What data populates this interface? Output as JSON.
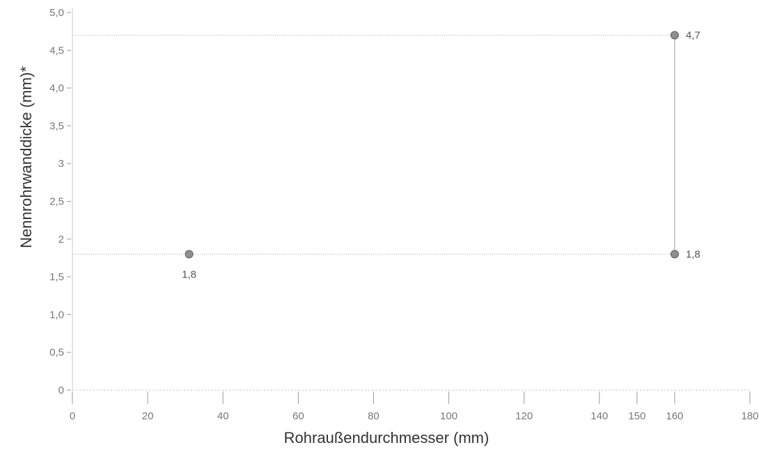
{
  "chart_data": {
    "type": "scatter",
    "title": "",
    "xlabel": "Rohraußendurchmesser (mm)",
    "ylabel": "Nennrohrwanddicke (mm)*",
    "xlim": [
      0,
      180
    ],
    "ylim": [
      0,
      5.0
    ],
    "x_ticks": [
      {
        "value": 0,
        "label": "0"
      },
      {
        "value": 20,
        "label": "20"
      },
      {
        "value": 40,
        "label": "40"
      },
      {
        "value": 60,
        "label": "60"
      },
      {
        "value": 80,
        "label": "80"
      },
      {
        "value": 100,
        "label": "100"
      },
      {
        "value": 120,
        "label": "120"
      },
      {
        "value": 140,
        "label": "140"
      },
      {
        "value": 150,
        "label": "150"
      },
      {
        "value": 160,
        "label": "160"
      },
      {
        "value": 180,
        "label": "180"
      }
    ],
    "y_ticks": [
      {
        "value": 0,
        "label": "0"
      },
      {
        "value": 0.5,
        "label": "0,5"
      },
      {
        "value": 1.0,
        "label": "1,0"
      },
      {
        "value": 1.5,
        "label": "1,5"
      },
      {
        "value": 2.0,
        "label": "2"
      },
      {
        "value": 2.5,
        "label": "2,5"
      },
      {
        "value": 3.0,
        "label": "3"
      },
      {
        "value": 3.5,
        "label": "3,5"
      },
      {
        "value": 4.0,
        "label": "4,0"
      },
      {
        "value": 4.5,
        "label": "4,5"
      },
      {
        "value": 5.0,
        "label": "5,0"
      }
    ],
    "points": [
      {
        "x": 31,
        "y": 1.8,
        "label": "1,8",
        "label_position": "below"
      },
      {
        "x": 160,
        "y": 1.8,
        "label": "1,8",
        "label_position": "right"
      },
      {
        "x": 160,
        "y": 4.7,
        "label": "4,7",
        "label_position": "right"
      }
    ],
    "reference_lines": [
      {
        "orientation": "horizontal",
        "y": 4.7
      },
      {
        "orientation": "horizontal",
        "y": 1.8
      }
    ],
    "range_line": {
      "x": 160,
      "y_from": 1.8,
      "y_to": 4.7
    },
    "grid": false,
    "legend": false,
    "colors": {
      "marker": "#8f8f8f",
      "text": "#777777"
    }
  }
}
